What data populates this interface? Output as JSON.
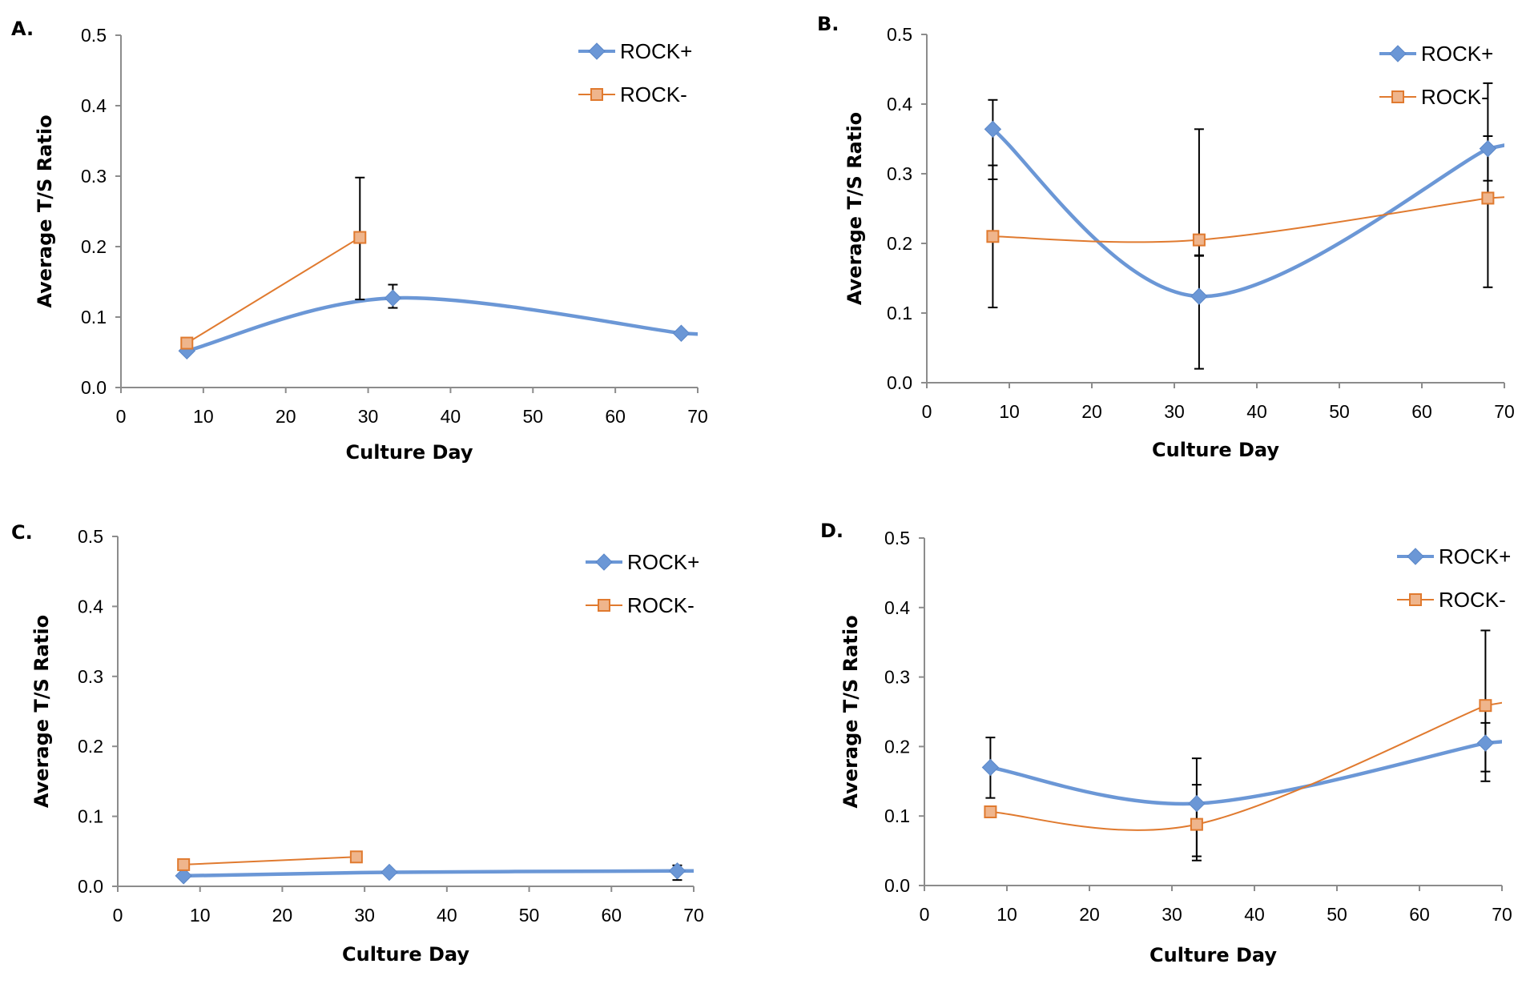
{
  "chart_data": [
    {
      "panel": "A.",
      "type": "line",
      "xlabel": "Culture Day",
      "ylabel": "Average T/S Ratio",
      "xlim": [
        0,
        70
      ],
      "ylim": [
        0,
        0.5
      ],
      "xticks": [
        "0",
        "10",
        "20",
        "30",
        "40",
        "50",
        "60",
        "70"
      ],
      "yticks": [
        "0.0",
        "0.1",
        "0.2",
        "0.3",
        "0.4",
        "0.5"
      ],
      "grid": false,
      "legend": "top-right",
      "series": [
        {
          "name": "ROCK+",
          "color": "#4472c4",
          "marker": "diamond",
          "smooth": true,
          "points": [
            {
              "x": 8,
              "y": 0.052,
              "err_low": null,
              "err_high": null
            },
            {
              "x": 33,
              "y": 0.127,
              "err_low": 0.113,
              "err_high": 0.146
            },
            {
              "x": 68,
              "y": 0.077,
              "err_low": null,
              "err_high": null
            }
          ]
        },
        {
          "name": "ROCK-",
          "color": "#ed7d31",
          "marker": "square",
          "smooth": false,
          "points": [
            {
              "x": 8,
              "y": 0.063,
              "err_low": null,
              "err_high": null
            },
            {
              "x": 29,
              "y": 0.213,
              "err_low": 0.125,
              "err_high": 0.298
            }
          ]
        }
      ]
    },
    {
      "panel": "B.",
      "type": "line",
      "xlabel": "Culture Day",
      "ylabel": "Average T/S Ratio",
      "xlim": [
        0,
        70
      ],
      "ylim": [
        0,
        0.5
      ],
      "xticks": [
        "0",
        "10",
        "20",
        "30",
        "40",
        "50",
        "60",
        "70"
      ],
      "yticks": [
        "0.0",
        "0.1",
        "0.2",
        "0.3",
        "0.4",
        "0.5"
      ],
      "grid": false,
      "legend": "top-right",
      "series": [
        {
          "name": "ROCK+",
          "color": "#4472c4",
          "marker": "diamond",
          "smooth": true,
          "points": [
            {
              "x": 8,
              "y": 0.364,
              "err_low": 0.292,
              "err_high": 0.406
            },
            {
              "x": 33,
              "y": 0.124,
              "err_low": 0.02,
              "err_high": 0.183
            },
            {
              "x": 68,
              "y": 0.336,
              "err_low": 0.29,
              "err_high": 0.354
            }
          ]
        },
        {
          "name": "ROCK-",
          "color": "#ed7d31",
          "marker": "square",
          "smooth": true,
          "points": [
            {
              "x": 8,
              "y": 0.21,
              "err_low": 0.108,
              "err_high": 0.312
            },
            {
              "x": 33,
              "y": 0.205,
              "err_low": 0.182,
              "err_high": 0.364
            },
            {
              "x": 68,
              "y": 0.265,
              "err_low": 0.137,
              "err_high": 0.43
            }
          ]
        }
      ]
    },
    {
      "panel": "C.",
      "type": "line",
      "xlabel": "Culture Day",
      "ylabel": "Average T/S Ratio",
      "xlim": [
        0,
        70
      ],
      "ylim": [
        0,
        0.5
      ],
      "xticks": [
        "0",
        "10",
        "20",
        "30",
        "40",
        "50",
        "60",
        "70"
      ],
      "yticks": [
        "0.0",
        "0.1",
        "0.2",
        "0.3",
        "0.4",
        "0.5"
      ],
      "grid": false,
      "legend": "top-right",
      "series": [
        {
          "name": "ROCK+",
          "color": "#4472c4",
          "marker": "diamond",
          "smooth": true,
          "points": [
            {
              "x": 8,
              "y": 0.015,
              "err_low": null,
              "err_high": null
            },
            {
              "x": 33,
              "y": 0.02,
              "err_low": null,
              "err_high": null
            },
            {
              "x": 68,
              "y": 0.022,
              "err_low": 0.009,
              "err_high": 0.03
            }
          ]
        },
        {
          "name": "ROCK-",
          "color": "#ed7d31",
          "marker": "square",
          "smooth": false,
          "points": [
            {
              "x": 8,
              "y": 0.031,
              "err_low": null,
              "err_high": null
            },
            {
              "x": 29,
              "y": 0.042,
              "err_low": null,
              "err_high": null
            }
          ]
        }
      ]
    },
    {
      "panel": "D.",
      "type": "line",
      "xlabel": "Culture Day",
      "ylabel": "Average T/S Ratio",
      "xlim": [
        0,
        70
      ],
      "ylim": [
        0,
        0.5
      ],
      "xticks": [
        "0",
        "10",
        "20",
        "30",
        "40",
        "50",
        "60",
        "70"
      ],
      "yticks": [
        "0.0",
        "0.1",
        "0.2",
        "0.3",
        "0.4",
        "0.5"
      ],
      "grid": false,
      "legend": "top-right",
      "series": [
        {
          "name": "ROCK+",
          "color": "#4472c4",
          "marker": "diamond",
          "smooth": true,
          "points": [
            {
              "x": 8,
              "y": 0.17,
              "err_low": 0.126,
              "err_high": 0.213
            },
            {
              "x": 33,
              "y": 0.118,
              "err_low": 0.042,
              "err_high": 0.145
            },
            {
              "x": 68,
              "y": 0.205,
              "err_low": 0.164,
              "err_high": 0.234
            }
          ]
        },
        {
          "name": "ROCK-",
          "color": "#ed7d31",
          "marker": "square",
          "smooth": true,
          "points": [
            {
              "x": 8,
              "y": 0.106,
              "err_low": null,
              "err_high": null
            },
            {
              "x": 33,
              "y": 0.088,
              "err_low": 0.036,
              "err_high": 0.183
            },
            {
              "x": 68,
              "y": 0.259,
              "err_low": 0.15,
              "err_high": 0.367
            }
          ]
        }
      ]
    }
  ]
}
